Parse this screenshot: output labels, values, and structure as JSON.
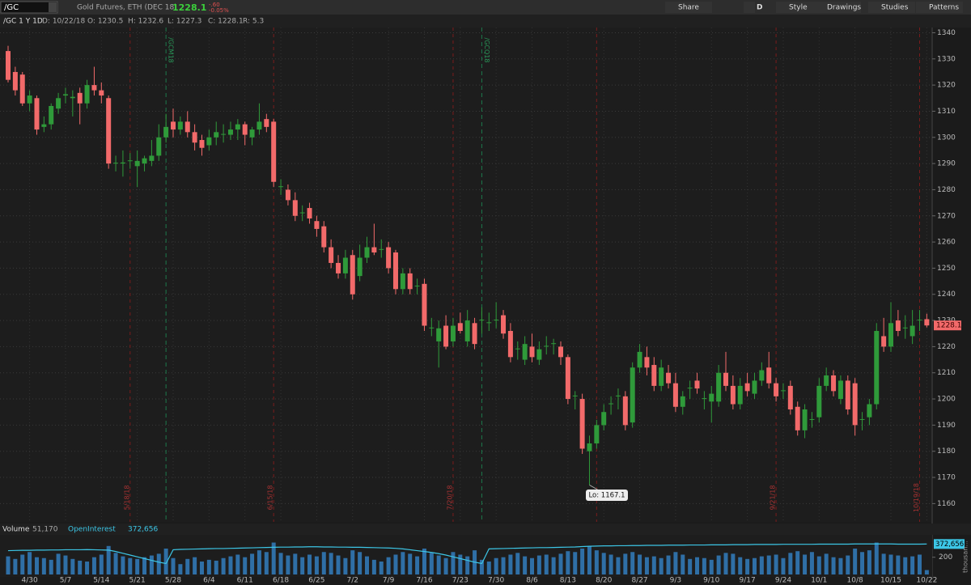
{
  "toolbar": {
    "symbol": "/GC",
    "description": "Gold Futures, ETH (DEC 18)",
    "last": "1228.1",
    "change": "-.60",
    "change_pct": "-0.05%",
    "buttons": [
      "Share",
      "D",
      "Style",
      "Drawings",
      "Studies",
      "Patterns"
    ]
  },
  "info": [
    "/GC 1 Y 1D",
    "D: 10/22/18",
    "O: 1230.5",
    "H: 1232.6",
    "L: 1227.3",
    "C: 1228.1",
    "R: 5.3"
  ],
  "chart_data": [
    {
      "type": "candlestick",
      "up_color": "#2f9a3a",
      "down_color": "#f26a6a",
      "grid": true,
      "categories": [
        null,
        null,
        null,
        "4/30",
        null,
        null,
        null,
        null,
        "5/7",
        null,
        null,
        null,
        null,
        "5/14",
        null,
        null,
        null,
        null,
        "5/21",
        null,
        null,
        null,
        null,
        "5/28",
        null,
        null,
        null,
        null,
        "6/4",
        null,
        null,
        null,
        null,
        "6/11",
        null,
        null,
        null,
        null,
        "6/18",
        null,
        null,
        null,
        null,
        "6/25",
        null,
        null,
        null,
        null,
        "7/2",
        null,
        null,
        null,
        null,
        "7/9",
        null,
        null,
        null,
        null,
        "7/16",
        null,
        null,
        null,
        null,
        "7/23",
        null,
        null,
        null,
        null,
        "7/30",
        null,
        null,
        null,
        null,
        "8/6",
        null,
        null,
        null,
        null,
        "8/13",
        null,
        null,
        null,
        null,
        "8/20",
        null,
        null,
        null,
        null,
        "8/27",
        null,
        null,
        null,
        null,
        "9/3",
        null,
        null,
        null,
        null,
        "9/10",
        null,
        null,
        null,
        null,
        "9/17",
        null,
        null,
        null,
        null,
        "9/24",
        null,
        null,
        null,
        null,
        "10/1",
        null,
        null,
        null,
        null,
        "10/8",
        null,
        null,
        null,
        null,
        "10/15",
        null,
        null,
        null,
        null,
        "10/22"
      ],
      "ohlc": [
        [
          1333,
          1335,
          1321,
          1322
        ],
        [
          1325,
          1327,
          1316,
          1318
        ],
        [
          1324,
          1325,
          1312,
          1313
        ],
        [
          1313,
          1318,
          1310,
          1316
        ],
        [
          1315,
          1316,
          1301,
          1303
        ],
        [
          1304,
          1308,
          1302,
          1305
        ],
        [
          1305,
          1313,
          1303,
          1312
        ],
        [
          1311,
          1317,
          1309,
          1315
        ],
        [
          1316,
          1319,
          1313,
          1316.5
        ],
        [
          1315,
          1318,
          1308,
          1315.5
        ],
        [
          1317,
          1319,
          1305,
          1313
        ],
        [
          1313,
          1322,
          1311,
          1320
        ],
        [
          1320,
          1327,
          1316,
          1318
        ],
        [
          1318,
          1321,
          1313,
          1316
        ],
        [
          1315,
          1316,
          1288,
          1290
        ],
        [
          1290,
          1293,
          1287,
          1290.3
        ],
        [
          1290,
          1295,
          1285,
          1290.4
        ],
        [
          1291,
          1294,
          1288,
          1291.2
        ],
        [
          1289,
          1295,
          1281,
          1291
        ],
        [
          1290,
          1293,
          1287,
          1292
        ],
        [
          1291,
          1299,
          1289,
          1293
        ],
        [
          1293,
          1305,
          1291,
          1300
        ],
        [
          1300,
          1309,
          1298,
          1304
        ],
        [
          1306,
          1311,
          1300,
          1303
        ],
        [
          1303,
          1308,
          1301,
          1306
        ],
        [
          1306,
          1310,
          1300,
          1302
        ],
        [
          1302,
          1305,
          1295,
          1298
        ],
        [
          1299,
          1301,
          1293,
          1296
        ],
        [
          1297,
          1303,
          1295,
          1300
        ],
        [
          1300,
          1306,
          1297,
          1302
        ],
        [
          1301,
          1305,
          1298,
          1301.3
        ],
        [
          1301,
          1306,
          1299,
          1303
        ],
        [
          1303,
          1307,
          1299,
          1305
        ],
        [
          1305,
          1306,
          1297,
          1301
        ],
        [
          1300,
          1304,
          1297,
          1303
        ],
        [
          1303,
          1313,
          1301,
          1306
        ],
        [
          1307,
          1309,
          1302,
          1304
        ],
        [
          1306,
          1307,
          1281,
          1283
        ],
        [
          1281,
          1284,
          1278,
          1281.3
        ],
        [
          1280,
          1282,
          1274,
          1276
        ],
        [
          1276,
          1279,
          1268,
          1270
        ],
        [
          1271,
          1274,
          1268,
          1271.3
        ],
        [
          1273,
          1275,
          1267,
          1269
        ],
        [
          1268,
          1270,
          1262,
          1265
        ],
        [
          1266,
          1268,
          1256,
          1258
        ],
        [
          1258,
          1261,
          1250,
          1252
        ],
        [
          1252,
          1255,
          1246,
          1248
        ],
        [
          1248,
          1257,
          1246,
          1254
        ],
        [
          1255,
          1257,
          1238,
          1240
        ],
        [
          1247,
          1259,
          1245,
          1254
        ],
        [
          1254,
          1262,
          1252,
          1258
        ],
        [
          1258,
          1267,
          1255,
          1256
        ],
        [
          1257,
          1261,
          1254,
          1257.3
        ],
        [
          1258,
          1260,
          1248,
          1250
        ],
        [
          1256,
          1257,
          1240,
          1242
        ],
        [
          1242,
          1250,
          1240,
          1248
        ],
        [
          1248,
          1250,
          1240,
          1242
        ],
        [
          1243,
          1246,
          1240,
          1243.3
        ],
        [
          1244,
          1246,
          1226,
          1228
        ],
        [
          1227,
          1231,
          1224,
          1227.3
        ],
        [
          1222,
          1230,
          1212,
          1227
        ],
        [
          1228,
          1232,
          1219,
          1220
        ],
        [
          1222,
          1231,
          1220,
          1228
        ],
        [
          1229,
          1233,
          1225,
          1226
        ],
        [
          1222,
          1234,
          1220,
          1230
        ],
        [
          1229,
          1231,
          1219,
          1221
        ],
        [
          1230,
          1235,
          1225,
          1230.3
        ],
        [
          1229,
          1233,
          1226,
          1229.3
        ],
        [
          1230,
          1237,
          1227,
          1230.3
        ],
        [
          1232,
          1234,
          1223,
          1225
        ],
        [
          1226,
          1229,
          1214,
          1216
        ],
        [
          1219,
          1222,
          1215,
          1219.3
        ],
        [
          1215,
          1224,
          1213,
          1221
        ],
        [
          1220,
          1225,
          1214,
          1216
        ],
        [
          1215,
          1222,
          1213,
          1219
        ],
        [
          1220,
          1224,
          1217,
          1220.3
        ],
        [
          1221,
          1223,
          1217,
          1221.3
        ],
        [
          1220,
          1222,
          1213,
          1216
        ],
        [
          1216,
          1217,
          1198,
          1200
        ],
        [
          1201,
          1203,
          1196,
          1201.3
        ],
        [
          1200,
          1202,
          1179,
          1181
        ],
        [
          1180,
          1186,
          1167.1,
          1183
        ],
        [
          1183,
          1192,
          1181,
          1190
        ],
        [
          1190,
          1198,
          1188,
          1195
        ],
        [
          1198,
          1201,
          1194,
          1198.3
        ],
        [
          1201,
          1204,
          1196,
          1201.3
        ],
        [
          1201,
          1203,
          1188,
          1190
        ],
        [
          1191,
          1214,
          1189,
          1212
        ],
        [
          1212,
          1221,
          1210,
          1218
        ],
        [
          1216,
          1220,
          1209,
          1212
        ],
        [
          1213,
          1216,
          1203,
          1205
        ],
        [
          1205,
          1215,
          1203,
          1212
        ],
        [
          1210,
          1213,
          1204,
          1206
        ],
        [
          1206,
          1210,
          1195,
          1197
        ],
        [
          1197,
          1203,
          1194,
          1201
        ],
        [
          1204,
          1207,
          1200,
          1204.3
        ],
        [
          1207,
          1210,
          1202,
          1204
        ],
        [
          1200,
          1203,
          1196,
          1200.3
        ],
        [
          1199,
          1205,
          1191,
          1202
        ],
        [
          1199,
          1213,
          1197,
          1210
        ],
        [
          1210,
          1218,
          1203,
          1205
        ],
        [
          1205,
          1209,
          1196,
          1198
        ],
        [
          1198,
          1208,
          1196,
          1205
        ],
        [
          1206,
          1210,
          1201,
          1203
        ],
        [
          1202,
          1210,
          1200,
          1207
        ],
        [
          1207,
          1214,
          1205,
          1211
        ],
        [
          1212,
          1218,
          1204,
          1206
        ],
        [
          1206,
          1208,
          1199,
          1201
        ],
        [
          1203,
          1206,
          1200,
          1203.3
        ],
        [
          1205,
          1207,
          1194,
          1196
        ],
        [
          1197,
          1199,
          1186,
          1188
        ],
        [
          1188,
          1198,
          1185,
          1196
        ],
        [
          1192,
          1195,
          1189,
          1192.3
        ],
        [
          1193,
          1208,
          1191,
          1205
        ],
        [
          1205,
          1212,
          1203,
          1209
        ],
        [
          1209,
          1211,
          1201,
          1203
        ],
        [
          1200,
          1209,
          1198,
          1207
        ],
        [
          1207,
          1209,
          1194,
          1196
        ],
        [
          1206,
          1208,
          1186,
          1190
        ],
        [
          1192,
          1195,
          1188,
          1192.3
        ],
        [
          1193,
          1200,
          1190,
          1198
        ],
        [
          1198,
          1229,
          1196,
          1226
        ],
        [
          1224,
          1231,
          1218,
          1220
        ],
        [
          1220,
          1237,
          1218,
          1229
        ],
        [
          1230,
          1234,
          1224,
          1226
        ],
        [
          1227,
          1232,
          1223,
          1227.3
        ],
        [
          1224,
          1234,
          1221,
          1228
        ],
        [
          1230,
          1234,
          1226,
          1230.3
        ],
        [
          1230.5,
          1232.6,
          1227.3,
          1228.1
        ]
      ],
      "ylim": [
        1153,
        1342
      ],
      "yticks": [
        1160,
        1170,
        1180,
        1190,
        1200,
        1210,
        1220,
        1230,
        1240,
        1250,
        1260,
        1270,
        1280,
        1290,
        1300,
        1310,
        1320,
        1330,
        1340
      ],
      "last_marker": "1228.1",
      "expirations": [
        "5/18/18",
        "6/15/18",
        "7/20/18",
        "9/21/18",
        "10/19/18"
      ],
      "rollovers": [
        "/GCM18",
        "/GCQ18"
      ],
      "annotations": [
        {
          "text": "Lo: 1167.1"
        }
      ]
    },
    {
      "type": "bar",
      "y_unit": "thousan...",
      "series": [
        {
          "name": "Volume",
          "color": "#2f6fa6",
          "header_label": "51,170",
          "values": [
            210,
            180,
            230,
            260,
            200,
            190,
            170,
            240,
            220,
            180,
            160,
            150,
            200,
            230,
            330,
            250,
            210,
            190,
            180,
            200,
            220,
            240,
            300,
            190,
            120,
            180,
            200,
            150,
            170,
            160,
            190,
            210,
            230,
            200,
            240,
            280,
            260,
            370,
            250,
            220,
            240,
            200,
            230,
            210,
            260,
            250,
            220,
            190,
            280,
            260,
            210,
            170,
            150,
            200,
            230,
            260,
            240,
            210,
            300,
            250,
            220,
            190,
            260,
            230,
            210,
            280,
            170,
            150,
            190,
            200,
            230,
            250,
            210,
            190,
            220,
            230,
            200,
            240,
            270,
            260,
            300,
            330,
            280,
            250,
            230,
            200,
            240,
            260,
            230,
            200,
            210,
            190,
            220,
            260,
            230,
            180,
            200,
            190,
            170,
            220,
            250,
            240,
            200,
            180,
            190,
            210,
            220,
            230,
            190,
            250,
            270,
            230,
            260,
            210,
            240,
            200,
            190,
            220,
            300,
            260,
            280,
            370,
            240,
            230,
            220,
            200,
            210,
            230,
            51.17
          ]
        },
        {
          "name": "OpenInterest",
          "color": "#3cc6e6",
          "axis": "y2",
          "header_label": "372,656",
          "values": [
            335,
            336,
            337,
            337,
            338,
            338,
            339,
            339,
            340,
            340,
            340,
            341,
            340,
            339,
            338,
            330,
            320,
            310,
            300,
            290,
            280,
            270,
            262,
            340,
            342,
            343,
            344,
            345,
            346,
            347,
            347,
            348,
            349,
            350,
            351,
            352,
            353,
            354,
            355,
            355,
            356,
            356,
            357,
            357,
            356,
            356,
            355,
            355,
            354,
            354,
            353,
            352,
            351,
            350,
            348,
            345,
            340,
            335,
            330,
            325,
            318,
            310,
            300,
            290,
            280,
            270,
            262,
            345,
            346,
            347,
            348,
            349,
            350,
            351,
            352,
            352,
            353,
            354,
            355,
            356,
            358,
            360,
            361,
            362,
            362,
            363,
            363,
            364,
            364,
            365,
            365,
            365,
            366,
            366,
            366,
            367,
            367,
            367,
            368,
            368,
            368,
            369,
            369,
            369,
            370,
            370,
            370,
            370,
            371,
            371,
            371,
            371,
            371,
            372,
            372,
            372,
            372,
            372,
            373,
            373,
            373,
            373,
            373,
            373,
            372,
            372,
            372,
            372,
            372.656
          ]
        }
      ],
      "ylim": [
        0,
        450
      ],
      "yticks": [
        200
      ],
      "y2lim": [
        200,
        420
      ]
    }
  ]
}
